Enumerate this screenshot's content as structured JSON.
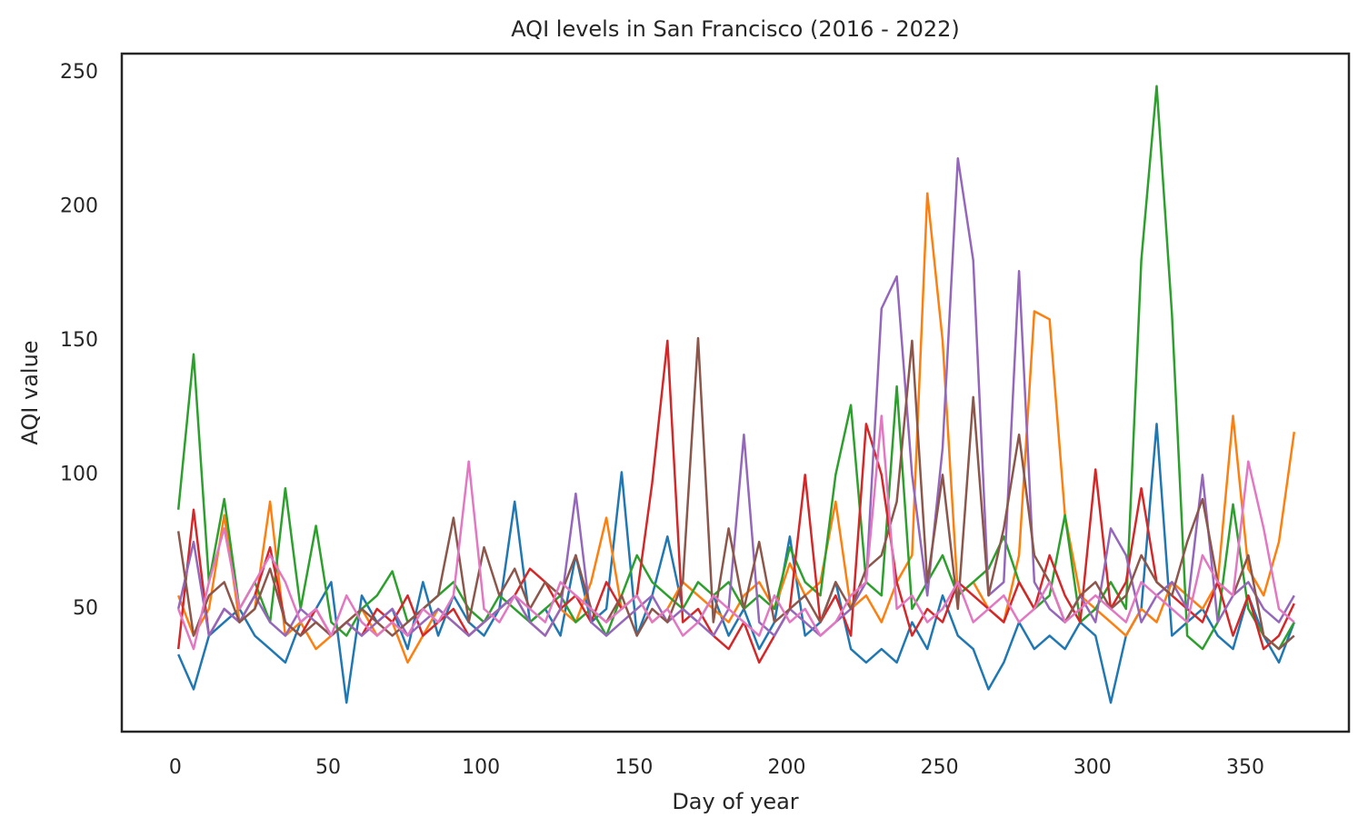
{
  "chart_data": {
    "type": "line",
    "title": "AQI levels in San Francisco (2016 - 2022)",
    "x_label": "Day of year",
    "y_label": "AQI value",
    "xlim": [
      -17.5,
      383.9
    ],
    "ylim": [
      4.2,
      257.1
    ],
    "xticks": [
      0,
      50,
      100,
      150,
      200,
      250,
      300,
      350
    ],
    "yticks": [
      50,
      100,
      150,
      200,
      250
    ],
    "grid": false,
    "x": [
      1,
      6,
      11,
      16,
      21,
      26,
      31,
      36,
      41,
      46,
      51,
      56,
      61,
      66,
      71,
      76,
      81,
      86,
      91,
      96,
      101,
      106,
      111,
      116,
      121,
      126,
      131,
      136,
      141,
      146,
      151,
      156,
      161,
      166,
      171,
      176,
      181,
      186,
      191,
      196,
      201,
      206,
      211,
      216,
      221,
      226,
      231,
      236,
      241,
      246,
      251,
      256,
      261,
      266,
      271,
      276,
      281,
      286,
      291,
      296,
      301,
      306,
      311,
      316,
      321,
      326,
      331,
      336,
      341,
      346,
      351,
      356,
      361,
      366
    ],
    "series": [
      {
        "color": "#1f77b4",
        "values": [
          33,
          20,
          40,
          45,
          50,
          40,
          35,
          30,
          45,
          50,
          60,
          15,
          55,
          45,
          50,
          35,
          60,
          40,
          55,
          45,
          40,
          50,
          90,
          45,
          50,
          40,
          70,
          45,
          50,
          101,
          40,
          55,
          77,
          50,
          45,
          55,
          40,
          50,
          35,
          45,
          77,
          40,
          45,
          60,
          35,
          30,
          35,
          30,
          45,
          35,
          55,
          40,
          35,
          20,
          30,
          45,
          35,
          40,
          35,
          45,
          40,
          15,
          40,
          50,
          119,
          40,
          45,
          50,
          40,
          35,
          55,
          40,
          30,
          45
        ]
      },
      {
        "color": "#ff7f0e",
        "values": [
          55,
          40,
          50,
          85,
          45,
          50,
          90,
          40,
          45,
          35,
          40,
          45,
          50,
          40,
          45,
          30,
          40,
          50,
          45,
          40,
          45,
          50,
          55,
          45,
          40,
          50,
          45,
          60,
          84,
          50,
          55,
          45,
          50,
          60,
          55,
          50,
          45,
          55,
          60,
          50,
          67,
          55,
          60,
          90,
          50,
          55,
          45,
          60,
          70,
          205,
          150,
          55,
          60,
          50,
          45,
          70,
          161,
          158,
          85,
          55,
          50,
          45,
          40,
          50,
          45,
          60,
          55,
          50,
          60,
          122,
          65,
          55,
          75,
          116
        ]
      },
      {
        "color": "#2ca02c",
        "values": [
          87,
          145,
          60,
          91,
          50,
          60,
          45,
          95,
          50,
          81,
          45,
          40,
          50,
          55,
          64,
          45,
          50,
          55,
          60,
          50,
          45,
          55,
          50,
          45,
          50,
          55,
          45,
          50,
          40,
          55,
          70,
          60,
          55,
          50,
          60,
          55,
          60,
          50,
          55,
          50,
          73,
          60,
          55,
          100,
          126,
          60,
          55,
          133,
          50,
          60,
          70,
          55,
          60,
          65,
          77,
          60,
          50,
          55,
          85,
          45,
          50,
          60,
          50,
          180,
          245,
          160,
          40,
          35,
          45,
          89,
          50,
          40,
          35,
          45
        ]
      },
      {
        "color": "#d62728",
        "values": [
          35,
          87,
          40,
          50,
          45,
          55,
          73,
          45,
          40,
          50,
          40,
          45,
          40,
          50,
          45,
          55,
          40,
          45,
          50,
          40,
          45,
          50,
          55,
          65,
          60,
          50,
          55,
          45,
          60,
          50,
          55,
          97,
          150,
          45,
          50,
          40,
          35,
          45,
          30,
          40,
          50,
          100,
          45,
          55,
          40,
          119,
          100,
          60,
          40,
          50,
          45,
          60,
          55,
          50,
          45,
          60,
          50,
          70,
          55,
          45,
          102,
          50,
          60,
          95,
          60,
          55,
          50,
          45,
          60,
          40,
          55,
          35,
          40,
          52
        ]
      },
      {
        "color": "#9467bd",
        "values": [
          50,
          75,
          40,
          50,
          45,
          55,
          45,
          40,
          50,
          45,
          40,
          45,
          40,
          45,
          50,
          40,
          45,
          50,
          45,
          40,
          45,
          50,
          55,
          45,
          40,
          50,
          93,
          45,
          40,
          45,
          50,
          55,
          45,
          50,
          45,
          40,
          50,
          115,
          45,
          40,
          50,
          45,
          40,
          45,
          50,
          60,
          162,
          174,
          100,
          55,
          110,
          218,
          180,
          55,
          60,
          176,
          60,
          50,
          45,
          55,
          45,
          80,
          70,
          45,
          55,
          60,
          50,
          100,
          45,
          55,
          60,
          50,
          45,
          55
        ]
      },
      {
        "color": "#8c564b",
        "values": [
          79,
          40,
          55,
          60,
          45,
          50,
          65,
          45,
          40,
          45,
          40,
          45,
          50,
          45,
          40,
          45,
          50,
          55,
          84,
          45,
          73,
          55,
          65,
          50,
          60,
          55,
          70,
          50,
          45,
          55,
          40,
          50,
          45,
          60,
          151,
          45,
          80,
          50,
          75,
          45,
          50,
          55,
          45,
          60,
          50,
          65,
          70,
          90,
          150,
          60,
          100,
          50,
          129,
          55,
          80,
          115,
          70,
          60,
          45,
          55,
          60,
          50,
          55,
          70,
          60,
          55,
          75,
          91,
          60,
          55,
          70,
          40,
          35,
          40
        ]
      },
      {
        "color": "#e377c2",
        "values": [
          50,
          35,
          60,
          80,
          50,
          60,
          70,
          60,
          45,
          50,
          40,
          55,
          45,
          40,
          45,
          40,
          50,
          45,
          55,
          105,
          50,
          45,
          55,
          50,
          45,
          60,
          55,
          50,
          45,
          50,
          55,
          45,
          50,
          40,
          45,
          55,
          50,
          45,
          40,
          55,
          45,
          50,
          40,
          45,
          55,
          60,
          122,
          50,
          55,
          45,
          50,
          60,
          45,
          50,
          55,
          45,
          50,
          60,
          45,
          50,
          55,
          50,
          45,
          60,
          55,
          50,
          45,
          70,
          60,
          55,
          105,
          80,
          50,
          45
        ]
      }
    ]
  }
}
